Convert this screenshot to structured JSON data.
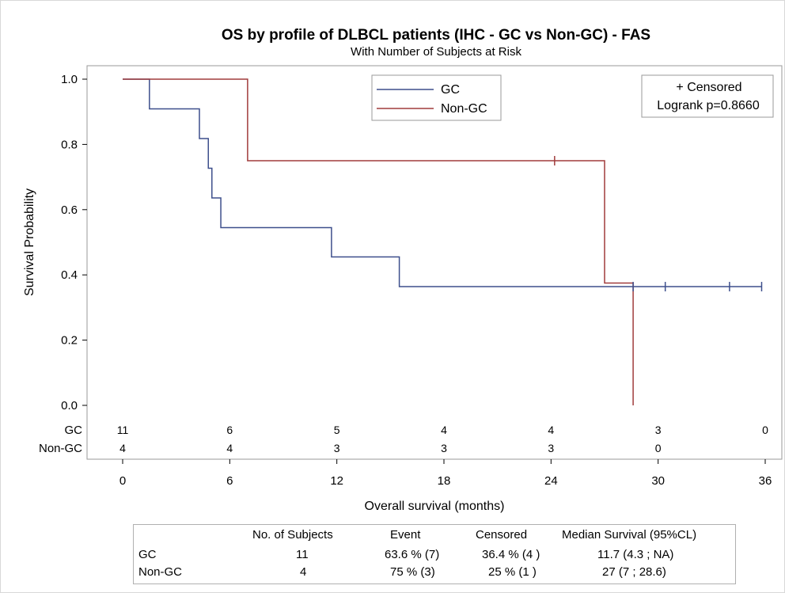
{
  "chart_data": {
    "type": "line",
    "subtype": "kaplan-meier step",
    "title": "OS by profile of DLBCL patients (IHC - GC vs Non-GC) - FAS",
    "subtitle": "With Number of Subjects at Risk",
    "xlabel": "Overall survival (months)",
    "ylabel": "Survival Probability",
    "xlim": [
      0,
      36
    ],
    "ylim": [
      0,
      1.0
    ],
    "xticks": [
      "0",
      "6",
      "12",
      "18",
      "24",
      "30",
      "36"
    ],
    "yticks": [
      "0.0",
      "0.2",
      "0.4",
      "0.6",
      "0.8",
      "1.0"
    ],
    "grid": false,
    "legend_position": "top-center",
    "series": [
      {
        "name": "GC",
        "color": "#3d4f8c",
        "steps": [
          [
            0,
            1.0
          ],
          [
            1.5,
            0.909
          ],
          [
            4.3,
            0.818
          ],
          [
            4.8,
            0.727
          ],
          [
            5.0,
            0.636
          ],
          [
            5.5,
            0.545
          ],
          [
            11.7,
            0.455
          ],
          [
            15.5,
            0.364
          ]
        ],
        "end_x": 35.8,
        "censored": [
          [
            28.6,
            0.364
          ],
          [
            30.4,
            0.364
          ],
          [
            34.0,
            0.364
          ],
          [
            35.8,
            0.364
          ]
        ]
      },
      {
        "name": "Non-GC",
        "color": "#a03c3c",
        "steps": [
          [
            0,
            1.0
          ],
          [
            7.0,
            0.75
          ],
          [
            27.0,
            0.375
          ],
          [
            28.6,
            0.0
          ]
        ],
        "end_x": 28.6,
        "censored": [
          [
            24.2,
            0.75
          ]
        ]
      }
    ],
    "annotation": {
      "censored_label": "+ Censored",
      "logrank": "Logrank p=0.8660"
    },
    "at_risk": {
      "x": [
        0,
        6,
        12,
        18,
        24,
        30,
        36
      ],
      "rows": [
        {
          "label": "GC",
          "values": [
            "11",
            "6",
            "5",
            "4",
            "4",
            "3",
            "0"
          ]
        },
        {
          "label": "Non-GC",
          "values": [
            "4",
            "4",
            "3",
            "3",
            "3",
            "0",
            ""
          ]
        }
      ]
    }
  },
  "stats_table": {
    "headers": [
      "No. of Subjects",
      "Event",
      "Censored",
      "Median Survival (95%CL)"
    ],
    "rows": [
      {
        "label": "GC",
        "cells": [
          "11",
          "63.6 % (7)",
          "36.4 % (4 )",
          "11.7 (4.3 ; NA)"
        ]
      },
      {
        "label": "Non-GC",
        "cells": [
          "4",
          "75 % (3)",
          "25 % (1 )",
          "27 (7 ; 28.6)"
        ]
      }
    ]
  }
}
